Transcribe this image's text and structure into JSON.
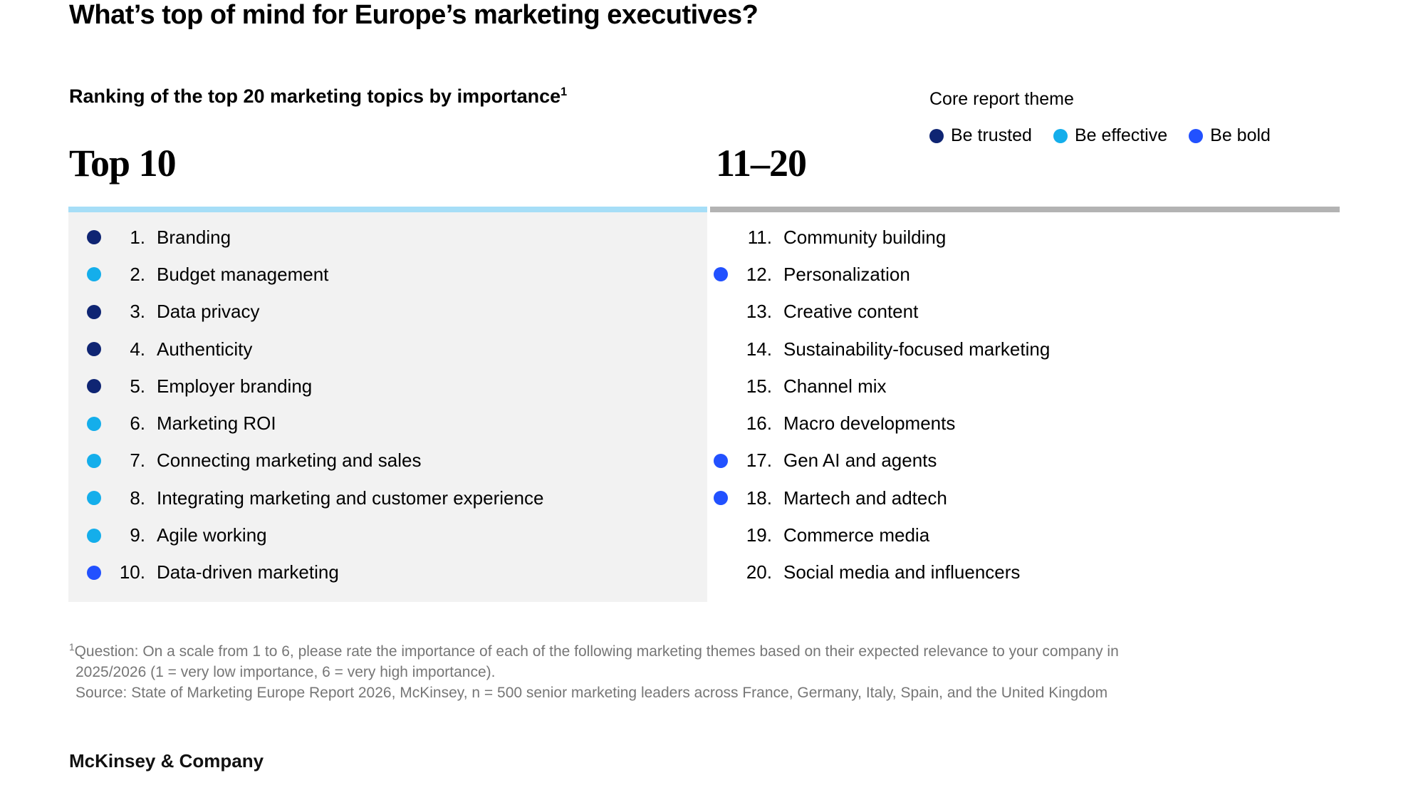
{
  "page": {
    "title": "What’s top of mind for Europe’s marketing executives?",
    "subtitle": "Ranking of the top 20 marketing topics by importance",
    "subtitle_marker": "1",
    "footer_logo": "McKinsey & Company"
  },
  "theme_colors": {
    "trusted": "#0f2573",
    "effective": "#14aeeb",
    "bold": "#2251ff"
  },
  "accent_colors": {
    "left_bar": "#a6def7",
    "right_bar": "#b3b3b3",
    "left_panel_bg": "#f2f2f2",
    "footnote_gray": "#767676"
  },
  "legend": {
    "title": "Core report theme",
    "items": [
      {
        "key": "trusted",
        "label": "Be trusted",
        "color": "#0f2573"
      },
      {
        "key": "effective",
        "label": "Be effective",
        "color": "#14aeeb"
      },
      {
        "key": "bold",
        "label": "Be bold",
        "color": "#2251ff"
      }
    ]
  },
  "columns": {
    "left_header": "Top 10",
    "right_header": "11–20"
  },
  "ranking": [
    {
      "rank": 1,
      "topic": "Branding",
      "theme": "trusted"
    },
    {
      "rank": 2,
      "topic": "Budget management",
      "theme": "effective"
    },
    {
      "rank": 3,
      "topic": "Data privacy",
      "theme": "trusted"
    },
    {
      "rank": 4,
      "topic": "Authenticity",
      "theme": "trusted"
    },
    {
      "rank": 5,
      "topic": "Employer branding",
      "theme": "trusted"
    },
    {
      "rank": 6,
      "topic": "Marketing ROI",
      "theme": "effective"
    },
    {
      "rank": 7,
      "topic": "Connecting marketing and sales",
      "theme": "effective"
    },
    {
      "rank": 8,
      "topic": "Integrating marketing and customer experience",
      "theme": "effective"
    },
    {
      "rank": 9,
      "topic": "Agile working",
      "theme": "effective"
    },
    {
      "rank": 10,
      "topic": "Data-driven marketing",
      "theme": "bold"
    },
    {
      "rank": 11,
      "topic": "Community building",
      "theme": null
    },
    {
      "rank": 12,
      "topic": "Personalization",
      "theme": "bold"
    },
    {
      "rank": 13,
      "topic": "Creative content",
      "theme": null
    },
    {
      "rank": 14,
      "topic": "Sustainability-focused marketing",
      "theme": null
    },
    {
      "rank": 15,
      "topic": "Channel mix",
      "theme": null
    },
    {
      "rank": 16,
      "topic": "Macro developments",
      "theme": null
    },
    {
      "rank": 17,
      "topic": "Gen AI and agents",
      "theme": "bold"
    },
    {
      "rank": 18,
      "topic": "Martech and adtech",
      "theme": "bold"
    },
    {
      "rank": 19,
      "topic": "Commerce media",
      "theme": null
    },
    {
      "rank": 20,
      "topic": "Social media and influencers",
      "theme": null
    }
  ],
  "footnote": {
    "marker": "1",
    "line1": "Question: On a scale from 1 to 6, please rate the importance of each of the following marketing themes based on their expected relevance to your company in",
    "line2": "2025/2026 (1 = very low importance, 6 = very high importance).",
    "source": "Source: State of Marketing Europe Report 2026, McKinsey, n = 500 senior marketing leaders across France, Germany, Italy, Spain, and the United Kingdom"
  },
  "chart_data": {
    "type": "table",
    "title": "Ranking of the top 20 marketing topics by importance",
    "groups": [
      "Top 10",
      "11–20"
    ],
    "legend": [
      "Be trusted",
      "Be effective",
      "Be bold"
    ],
    "legend_title": "Core report theme",
    "columns": [
      "rank",
      "topic",
      "core_report_theme"
    ],
    "rows": [
      [
        1,
        "Branding",
        "Be trusted"
      ],
      [
        2,
        "Budget management",
        "Be effective"
      ],
      [
        3,
        "Data privacy",
        "Be trusted"
      ],
      [
        4,
        "Authenticity",
        "Be trusted"
      ],
      [
        5,
        "Employer branding",
        "Be trusted"
      ],
      [
        6,
        "Marketing ROI",
        "Be effective"
      ],
      [
        7,
        "Connecting marketing and sales",
        "Be effective"
      ],
      [
        8,
        "Integrating marketing and customer experience",
        "Be effective"
      ],
      [
        9,
        "Agile working",
        "Be effective"
      ],
      [
        10,
        "Data-driven marketing",
        "Be bold"
      ],
      [
        11,
        "Community building",
        null
      ],
      [
        12,
        "Personalization",
        "Be bold"
      ],
      [
        13,
        "Creative content",
        null
      ],
      [
        14,
        "Sustainability-focused marketing",
        null
      ],
      [
        15,
        "Channel mix",
        null
      ],
      [
        16,
        "Macro developments",
        null
      ],
      [
        17,
        "Gen AI and agents",
        "Be bold"
      ],
      [
        18,
        "Martech and adtech",
        "Be bold"
      ],
      [
        19,
        "Commerce media",
        null
      ],
      [
        20,
        "Social media and influencers",
        null
      ]
    ]
  }
}
